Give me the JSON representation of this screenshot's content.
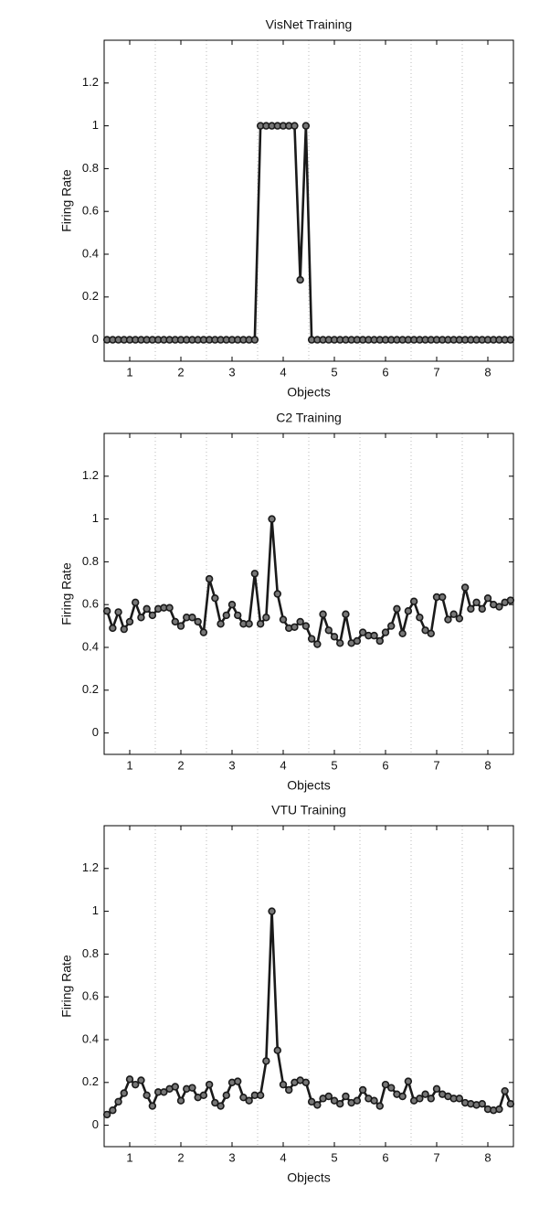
{
  "chart_data": [
    {
      "type": "line",
      "title": "VisNet Training",
      "xlabel": "Objects",
      "ylabel": "Firing Rate",
      "x": [
        0.556,
        0.667,
        0.778,
        0.889,
        1,
        1.111,
        1.222,
        1.333,
        1.444,
        1.556,
        1.667,
        1.778,
        1.889,
        2,
        2.111,
        2.222,
        2.333,
        2.444,
        2.556,
        2.667,
        2.778,
        2.889,
        3,
        3.111,
        3.222,
        3.333,
        3.444,
        3.556,
        3.667,
        3.778,
        3.889,
        4,
        4.111,
        4.222,
        4.333,
        4.444,
        4.556,
        4.667,
        4.778,
        4.889,
        5,
        5.111,
        5.222,
        5.333,
        5.444,
        5.556,
        5.667,
        5.778,
        5.889,
        6,
        6.111,
        6.222,
        6.333,
        6.444,
        6.556,
        6.667,
        6.778,
        6.889,
        7,
        7.111,
        7.222,
        7.333,
        7.444,
        7.556,
        7.667,
        7.778,
        7.889,
        8,
        8.111,
        8.222,
        8.333,
        8.444
      ],
      "series": [
        {
          "color": "#1a1a1a",
          "values": [
            0,
            0,
            0,
            0,
            0,
            0,
            0,
            0,
            0,
            0,
            0,
            0,
            0,
            0,
            0,
            0,
            0,
            0,
            0,
            0,
            0,
            0,
            0,
            0,
            0,
            0,
            0,
            1,
            1,
            1,
            1,
            1,
            1,
            1,
            0.28,
            1,
            0,
            0,
            0,
            0,
            0,
            0,
            0,
            0,
            0,
            0,
            0,
            0,
            0,
            0,
            0,
            0,
            0,
            0,
            0,
            0,
            0,
            0,
            0,
            0,
            0,
            0,
            0,
            0,
            0,
            0,
            0,
            0,
            0,
            0,
            0,
            0
          ]
        }
      ],
      "xlim": [
        0.5,
        8.5
      ],
      "xticks": [
        1,
        2,
        3,
        4,
        5,
        6,
        7,
        8
      ],
      "ylim": [
        -0.1,
        1.4
      ],
      "yticks": [
        0,
        0.2,
        0.4,
        0.6,
        0.8,
        1,
        1.2
      ],
      "separators": [
        1.5,
        2.5,
        3.5,
        4.5,
        5.5,
        6.5,
        7.5
      ]
    },
    {
      "type": "line",
      "title": "C2 Training",
      "xlabel": "Objects",
      "ylabel": "Firing Rate",
      "x": [
        0.556,
        0.667,
        0.778,
        0.889,
        1,
        1.111,
        1.222,
        1.333,
        1.444,
        1.556,
        1.667,
        1.778,
        1.889,
        2,
        2.111,
        2.222,
        2.333,
        2.444,
        2.556,
        2.667,
        2.778,
        2.889,
        3,
        3.111,
        3.222,
        3.333,
        3.444,
        3.556,
        3.667,
        3.778,
        3.889,
        4,
        4.111,
        4.222,
        4.333,
        4.444,
        4.556,
        4.667,
        4.778,
        4.889,
        5,
        5.111,
        5.222,
        5.333,
        5.444,
        5.556,
        5.667,
        5.778,
        5.889,
        6,
        6.111,
        6.222,
        6.333,
        6.444,
        6.556,
        6.667,
        6.778,
        6.889,
        7,
        7.111,
        7.222,
        7.333,
        7.444,
        7.556,
        7.667,
        7.778,
        7.889,
        8,
        8.111,
        8.222,
        8.333,
        8.444
      ],
      "series": [
        {
          "color": "#1a1a1a",
          "values": [
            0.57,
            0.49,
            0.565,
            0.485,
            0.52,
            0.61,
            0.54,
            0.58,
            0.55,
            0.58,
            0.585,
            0.585,
            0.52,
            0.5,
            0.54,
            0.54,
            0.52,
            0.47,
            0.72,
            0.63,
            0.51,
            0.55,
            0.6,
            0.55,
            0.51,
            0.51,
            0.745,
            0.51,
            0.54,
            1,
            0.65,
            0.53,
            0.49,
            0.495,
            0.52,
            0.5,
            0.44,
            0.415,
            0.555,
            0.48,
            0.45,
            0.42,
            0.555,
            0.42,
            0.43,
            0.47,
            0.455,
            0.455,
            0.43,
            0.47,
            0.5,
            0.58,
            0.465,
            0.57,
            0.615,
            0.54,
            0.48,
            0.465,
            0.635,
            0.635,
            0.53,
            0.555,
            0.535,
            0.68,
            0.58,
            0.61,
            0.58,
            0.63,
            0.6,
            0.59,
            0.61,
            0.62
          ]
        }
      ],
      "xlim": [
        0.5,
        8.5
      ],
      "xticks": [
        1,
        2,
        3,
        4,
        5,
        6,
        7,
        8
      ],
      "ylim": [
        -0.1,
        1.4
      ],
      "yticks": [
        0,
        0.2,
        0.4,
        0.6,
        0.8,
        1,
        1.2
      ],
      "separators": [
        1.5,
        2.5,
        3.5,
        4.5,
        5.5,
        6.5,
        7.5
      ]
    },
    {
      "type": "line",
      "title": "VTU Training",
      "xlabel": "Objects",
      "ylabel": "Firing Rate",
      "x": [
        0.556,
        0.667,
        0.778,
        0.889,
        1,
        1.111,
        1.222,
        1.333,
        1.444,
        1.556,
        1.667,
        1.778,
        1.889,
        2,
        2.111,
        2.222,
        2.333,
        2.444,
        2.556,
        2.667,
        2.778,
        2.889,
        3,
        3.111,
        3.222,
        3.333,
        3.444,
        3.556,
        3.667,
        3.778,
        3.889,
        4,
        4.111,
        4.222,
        4.333,
        4.444,
        4.556,
        4.667,
        4.778,
        4.889,
        5,
        5.111,
        5.222,
        5.333,
        5.444,
        5.556,
        5.667,
        5.778,
        5.889,
        6,
        6.111,
        6.222,
        6.333,
        6.444,
        6.556,
        6.667,
        6.778,
        6.889,
        7,
        7.111,
        7.222,
        7.333,
        7.444,
        7.556,
        7.667,
        7.778,
        7.889,
        8,
        8.111,
        8.222,
        8.333,
        8.444
      ],
      "series": [
        {
          "color": "#1a1a1a",
          "values": [
            0.05,
            0.07,
            0.11,
            0.15,
            0.215,
            0.19,
            0.21,
            0.14,
            0.09,
            0.155,
            0.155,
            0.17,
            0.18,
            0.115,
            0.17,
            0.175,
            0.13,
            0.14,
            0.19,
            0.105,
            0.09,
            0.14,
            0.2,
            0.205,
            0.13,
            0.115,
            0.14,
            0.14,
            0.3,
            1,
            0.35,
            0.19,
            0.165,
            0.2,
            0.21,
            0.2,
            0.11,
            0.095,
            0.125,
            0.135,
            0.115,
            0.1,
            0.135,
            0.105,
            0.115,
            0.165,
            0.125,
            0.115,
            0.09,
            0.19,
            0.175,
            0.145,
            0.135,
            0.205,
            0.115,
            0.125,
            0.145,
            0.125,
            0.17,
            0.145,
            0.135,
            0.125,
            0.125,
            0.105,
            0.1,
            0.095,
            0.1,
            0.075,
            0.07,
            0.075,
            0.16,
            0.1
          ]
        }
      ],
      "xlim": [
        0.5,
        8.5
      ],
      "xticks": [
        1,
        2,
        3,
        4,
        5,
        6,
        7,
        8
      ],
      "ylim": [
        -0.1,
        1.4
      ],
      "yticks": [
        0,
        0.2,
        0.4,
        0.6,
        0.8,
        1,
        1.2
      ],
      "separators": [
        1.5,
        2.5,
        3.5,
        4.5,
        5.5,
        6.5,
        7.5
      ]
    }
  ]
}
